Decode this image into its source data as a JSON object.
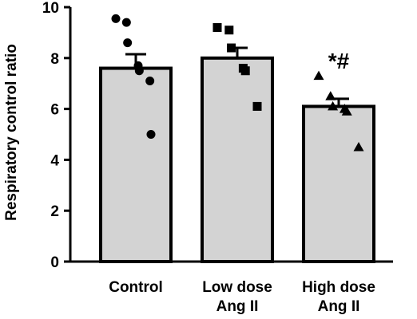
{
  "chart_data": {
    "type": "bar",
    "title": "",
    "xlabel": "",
    "ylabel": "Respiratory control ratio",
    "ylim": [
      0,
      10
    ],
    "yticks": [
      0,
      2,
      4,
      6,
      8,
      10
    ],
    "grid": false,
    "categories": [
      [
        "Control"
      ],
      [
        "Low dose",
        "Ang II"
      ],
      [
        "High dose",
        "Ang II"
      ]
    ],
    "values": [
      7.6,
      8.0,
      6.1
    ],
    "sem": [
      0.55,
      0.4,
      0.3
    ],
    "points": [
      [
        9.55,
        9.4,
        8.6,
        7.7,
        7.5,
        7.1,
        5.0
      ],
      [
        9.2,
        9.1,
        8.4,
        7.6,
        7.5,
        6.1
      ],
      [
        7.3,
        6.5,
        6.1,
        6.0,
        5.9,
        4.5
      ]
    ],
    "markers": [
      "circle",
      "square",
      "triangle"
    ],
    "annotations": [
      "",
      "",
      "*#"
    ],
    "colors": {
      "bar_fill": "#d3d3d3",
      "bar_stroke": "#000000",
      "marker": "#000000"
    }
  }
}
